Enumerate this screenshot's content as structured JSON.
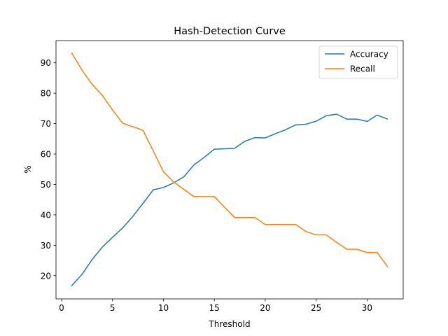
{
  "chart_data": {
    "type": "line",
    "title": "Hash-Detection Curve",
    "xlabel": "Threshold",
    "ylabel": "%",
    "xlim": [
      -0.55,
      33.55
    ],
    "ylim": [
      12.35,
      97.3
    ],
    "xticks": [
      0,
      5,
      10,
      15,
      20,
      25,
      30
    ],
    "yticks": [
      20,
      30,
      40,
      50,
      60,
      70,
      80,
      90
    ],
    "grid": false,
    "legend": "top-right",
    "x": [
      1,
      2,
      3,
      4,
      5,
      6,
      7,
      8,
      9,
      10,
      11,
      12,
      13,
      14,
      15,
      16,
      17,
      18,
      19,
      20,
      21,
      22,
      23,
      24,
      25,
      26,
      27,
      28,
      29,
      30,
      31,
      32
    ],
    "series": [
      {
        "name": "Accuracy",
        "color": "#1f77b4",
        "values": [
          16.7,
          20.4,
          25.3,
          29.4,
          32.6,
          35.7,
          39.5,
          43.8,
          48.2,
          49.0,
          50.5,
          52.5,
          56.4,
          58.9,
          61.6,
          61.7,
          61.9,
          64.2,
          65.4,
          65.3,
          66.7,
          68.0,
          69.6,
          69.8,
          70.8,
          72.6,
          73.1,
          71.5,
          71.5,
          70.7,
          72.8,
          71.5
        ]
      },
      {
        "name": "Recall",
        "color": "#ff7f0e",
        "values": [
          93.2,
          87.6,
          82.9,
          79.3,
          74.5,
          70.1,
          69.0,
          67.8,
          61.0,
          54.2,
          50.8,
          48.4,
          46.0,
          46.0,
          46.0,
          42.5,
          39.1,
          39.1,
          39.1,
          36.8,
          36.8,
          36.8,
          36.8,
          34.5,
          33.4,
          33.4,
          31.0,
          28.7,
          28.7,
          27.6,
          27.6,
          23.0
        ]
      }
    ]
  }
}
